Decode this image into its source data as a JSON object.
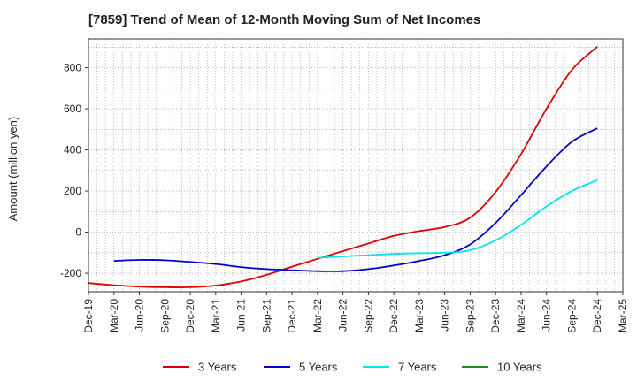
{
  "chart_data": {
    "type": "line",
    "title": "[7859]  Trend of Mean of 12-Month Moving Sum of Net Incomes",
    "xlabel": "",
    "ylabel": "Amount (million yen)",
    "ylim": [
      -290,
      940
    ],
    "yticks": [
      -200,
      0,
      200,
      400,
      600,
      800
    ],
    "x_tick_labels": [
      "Dec-19",
      "Mar-20",
      "Jun-20",
      "Sep-20",
      "Dec-20",
      "Mar-21",
      "Jun-21",
      "Sep-21",
      "Dec-21",
      "Mar-22",
      "Jun-22",
      "Sep-22",
      "Dec-22",
      "Mar-23",
      "Jun-23",
      "Sep-23",
      "Dec-23",
      "Mar-24",
      "Jun-24",
      "Sep-24",
      "Dec-24",
      "Mar-25"
    ],
    "grid": true,
    "legend_position": "bottom",
    "series": [
      {
        "name": "3 Years",
        "color": "#dd0000",
        "points": [
          [
            0,
            -248
          ],
          [
            1,
            -258
          ],
          [
            2,
            -265
          ],
          [
            3,
            -268
          ],
          [
            4,
            -268
          ],
          [
            5,
            -260
          ],
          [
            6,
            -240
          ],
          [
            7,
            -208
          ],
          [
            8,
            -168
          ],
          [
            9,
            -130
          ],
          [
            10,
            -92
          ],
          [
            11,
            -55
          ],
          [
            12,
            -18
          ],
          [
            13,
            5
          ],
          [
            14,
            25
          ],
          [
            15,
            70
          ],
          [
            16,
            195
          ],
          [
            17,
            380
          ],
          [
            18,
            600
          ],
          [
            19,
            790
          ],
          [
            20,
            902
          ]
        ]
      },
      {
        "name": "5 Years",
        "color": "#0000cc",
        "points": [
          [
            1,
            -140
          ],
          [
            2,
            -135
          ],
          [
            3,
            -137
          ],
          [
            4,
            -145
          ],
          [
            5,
            -155
          ],
          [
            6,
            -170
          ],
          [
            7,
            -180
          ],
          [
            8,
            -185
          ],
          [
            9,
            -190
          ],
          [
            10,
            -190
          ],
          [
            11,
            -180
          ],
          [
            12,
            -162
          ],
          [
            13,
            -140
          ],
          [
            14,
            -112
          ],
          [
            15,
            -60
          ],
          [
            16,
            45
          ],
          [
            17,
            180
          ],
          [
            18,
            320
          ],
          [
            19,
            440
          ],
          [
            20,
            505
          ]
        ]
      },
      {
        "name": "7 Years",
        "color": "#00e5ee",
        "points": [
          [
            9,
            -125
          ],
          [
            10,
            -118
          ],
          [
            11,
            -112
          ],
          [
            12,
            -106
          ],
          [
            13,
            -102
          ],
          [
            14,
            -100
          ],
          [
            15,
            -88
          ],
          [
            16,
            -40
          ],
          [
            17,
            35
          ],
          [
            18,
            125
          ],
          [
            19,
            200
          ],
          [
            20,
            253
          ]
        ]
      },
      {
        "name": "10 Years",
        "color": "#228b22",
        "points": []
      }
    ]
  }
}
